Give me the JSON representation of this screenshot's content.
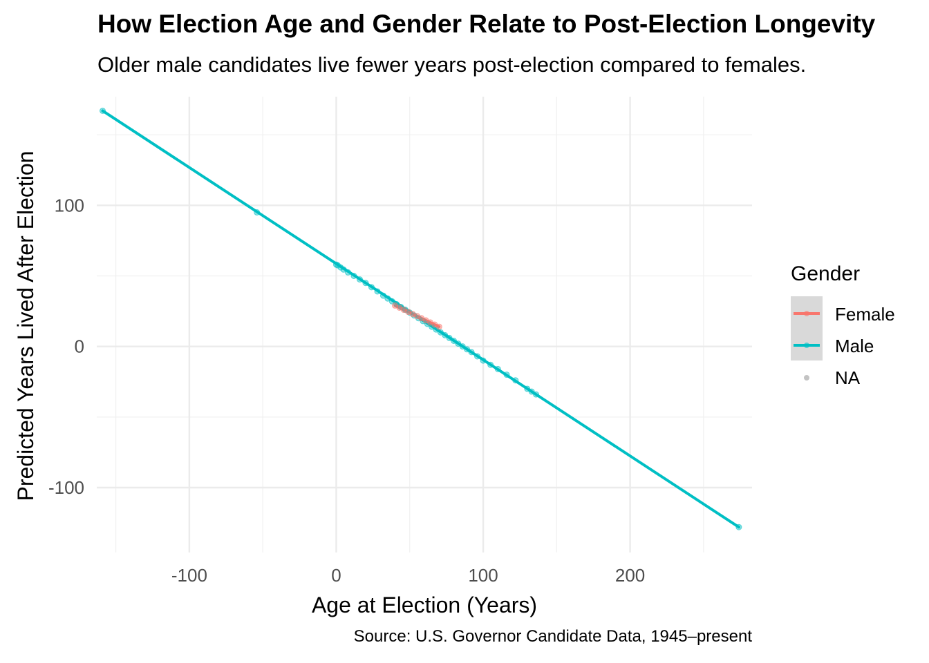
{
  "chart_data": {
    "type": "scatter",
    "title": "How Election Age and Gender Relate to Post-Election Longevity",
    "subtitle": "Older male candidates live fewer years post-election compared to females.",
    "xlabel": "Age at Election (Years)",
    "ylabel": "Predicted Years Lived After Election",
    "caption": "Source: U.S. Governor Candidate Data, 1945–present",
    "xlim": [
      -163,
      283
    ],
    "ylim": [
      -146,
      177
    ],
    "x_ticks": [
      -100,
      0,
      100,
      200
    ],
    "x_tick_labels": [
      "-100",
      "0",
      "100",
      "200"
    ],
    "y_ticks": [
      -100,
      0,
      100
    ],
    "y_tick_labels": [
      "-100",
      "0",
      "100"
    ],
    "grid": true,
    "legend": {
      "title": "Gender",
      "position": "right",
      "entries": [
        "Female",
        "Male",
        "NA"
      ]
    },
    "series": [
      {
        "name": "Male",
        "color": "#00BFC4",
        "line": [
          [
            -159,
            167
          ],
          [
            274,
            -128
          ]
        ],
        "points": [
          [
            -159,
            167
          ],
          [
            -54,
            95
          ],
          [
            0,
            58
          ],
          [
            1,
            57.5
          ],
          [
            3,
            56
          ],
          [
            5,
            54.5
          ],
          [
            8,
            52.5
          ],
          [
            12,
            50
          ],
          [
            16,
            47.5
          ],
          [
            20,
            45
          ],
          [
            24,
            42
          ],
          [
            28,
            39
          ],
          [
            32,
            36
          ],
          [
            35,
            34
          ],
          [
            38,
            32
          ],
          [
            41,
            30
          ],
          [
            44,
            28
          ],
          [
            47,
            26
          ],
          [
            50,
            24
          ],
          [
            53,
            22
          ],
          [
            56,
            20
          ],
          [
            59,
            18
          ],
          [
            62,
            16
          ],
          [
            65,
            14
          ],
          [
            68,
            12
          ],
          [
            71,
            10
          ],
          [
            74,
            8
          ],
          [
            77,
            6
          ],
          [
            80,
            4
          ],
          [
            83,
            2
          ],
          [
            86,
            0
          ],
          [
            89,
            -2
          ],
          [
            92,
            -4
          ],
          [
            96,
            -7
          ],
          [
            100,
            -10
          ],
          [
            105,
            -13
          ],
          [
            110,
            -16
          ],
          [
            116,
            -20
          ],
          [
            122,
            -24
          ],
          [
            130,
            -30
          ],
          [
            133,
            -32
          ],
          [
            136,
            -34
          ],
          [
            274,
            -128
          ]
        ]
      },
      {
        "name": "Female",
        "color": "#F8766D",
        "line": [
          [
            40,
            29
          ],
          [
            70,
            14
          ]
        ],
        "points": [
          [
            40,
            29
          ],
          [
            43,
            27.5
          ],
          [
            46,
            26
          ],
          [
            49,
            24.5
          ],
          [
            52,
            23
          ],
          [
            55,
            21.5
          ],
          [
            58,
            20
          ],
          [
            61,
            18.5
          ],
          [
            64,
            17
          ],
          [
            67,
            15.5
          ],
          [
            70,
            14
          ]
        ]
      }
    ]
  }
}
